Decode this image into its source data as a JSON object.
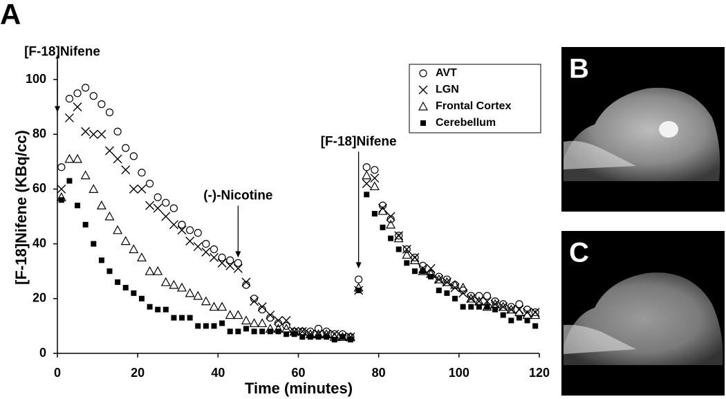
{
  "chart_data": {
    "type": "scatter",
    "panel_labels": [
      "A",
      "B",
      "C"
    ],
    "xlabel": "Time (minutes)",
    "ylabel": "[F-18]Nifene (KBq/cc)",
    "xlim": [
      0,
      120
    ],
    "xticks": [
      0,
      20,
      40,
      60,
      80,
      100,
      120
    ],
    "ylim": [
      0,
      100
    ],
    "yticks": [
      0,
      20,
      40,
      60,
      80,
      100
    ],
    "legend": "upper right",
    "annotations": [
      {
        "text": "[F-18]Nifene",
        "x": 0,
        "y": 88
      },
      {
        "text": "(-)-Nicotine",
        "x": 45,
        "y": 35
      },
      {
        "text": "[F-18]Nifene",
        "x": 75,
        "y": 31
      }
    ],
    "x": [
      1,
      3,
      5,
      7,
      9,
      11,
      13,
      15,
      17,
      19,
      21,
      23,
      25,
      27,
      29,
      31,
      33,
      35,
      37,
      39,
      41,
      43,
      45,
      47,
      49,
      51,
      53,
      55,
      57,
      59,
      61,
      63,
      65,
      67,
      69,
      71,
      73,
      75,
      77,
      79,
      81,
      83,
      85,
      87,
      89,
      91,
      93,
      95,
      97,
      99,
      101,
      103,
      105,
      107,
      109,
      111,
      113,
      115,
      117,
      119
    ],
    "series": [
      {
        "name": "AVT",
        "marker": "circle",
        "color": "#000000",
        "values": [
          68,
          93,
          95,
          97,
          94,
          91,
          88,
          81,
          75,
          72,
          66,
          62,
          57,
          55,
          53,
          47,
          45,
          44,
          40,
          38,
          35,
          34,
          33,
          25,
          20,
          16,
          13,
          11,
          10,
          8,
          8,
          8,
          9,
          8,
          7,
          7,
          6,
          27,
          68,
          67,
          54,
          49,
          43,
          38,
          35,
          32,
          29,
          28,
          27,
          25,
          23,
          21,
          21,
          21,
          19,
          18,
          17,
          18,
          16,
          15
        ]
      },
      {
        "name": "LGN",
        "marker": "x",
        "color": "#000000",
        "values": [
          60,
          86,
          90,
          81,
          80,
          80,
          74,
          71,
          67,
          60,
          60,
          54,
          53,
          50,
          47,
          45,
          41,
          39,
          37,
          35,
          33,
          32,
          31,
          26,
          19,
          17,
          14,
          12,
          12,
          8,
          8,
          7,
          7,
          7,
          7,
          6,
          6,
          23,
          62,
          64,
          53,
          50,
          43,
          38,
          35,
          31,
          31,
          27,
          26,
          24,
          22,
          20,
          19,
          19,
          18,
          17,
          16,
          16,
          15,
          15
        ]
      },
      {
        "name": "Frontal Cortex",
        "marker": "triangle",
        "color": "#000000",
        "values": [
          57,
          71,
          71,
          65,
          60,
          54,
          50,
          45,
          41,
          38,
          35,
          30,
          30,
          26,
          25,
          24,
          22,
          21,
          19,
          17,
          17,
          14,
          14,
          12,
          11,
          11,
          9,
          9,
          9,
          8,
          8,
          7,
          7,
          7,
          6,
          6,
          6,
          24,
          65,
          61,
          52,
          47,
          42,
          36,
          34,
          30,
          29,
          27,
          26,
          25,
          24,
          20,
          19,
          17,
          18,
          17,
          16,
          15,
          14,
          14
        ]
      },
      {
        "name": "Cerebellum",
        "marker": "square",
        "color": "#000000",
        "values": [
          56,
          63,
          54,
          47,
          40,
          34,
          30,
          26,
          24,
          22,
          20,
          17,
          16,
          16,
          13,
          13,
          13,
          10,
          10,
          10,
          11,
          8,
          8,
          9,
          8,
          8,
          8,
          8,
          7,
          7,
          6,
          6,
          6,
          6,
          5,
          6,
          5,
          23,
          58,
          51,
          46,
          42,
          38,
          33,
          30,
          30,
          28,
          23,
          22,
          20,
          17,
          17,
          17,
          17,
          16,
          14,
          12,
          13,
          12,
          10
        ]
      }
    ]
  }
}
